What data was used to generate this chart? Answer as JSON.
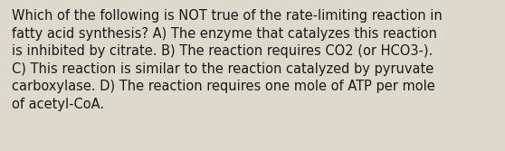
{
  "lines": [
    "Which of the following is NOT true of the rate-limiting reaction in",
    "fatty acid synthesis? A) The enzyme that catalyzes this reaction",
    "is inhibited by citrate. B) The reaction requires CO2 (or HCO3-).",
    "C) This reaction is similar to the reaction catalyzed by pyruvate",
    "carboxylase. D) The reaction requires one mole of ATP per mole",
    "of acetyl-CoA."
  ],
  "background_color": "#ddd9cc",
  "text_color": "#1a1a1a",
  "font_size": 10.5,
  "fig_width": 5.58,
  "fig_height": 1.67,
  "dpi": 100
}
